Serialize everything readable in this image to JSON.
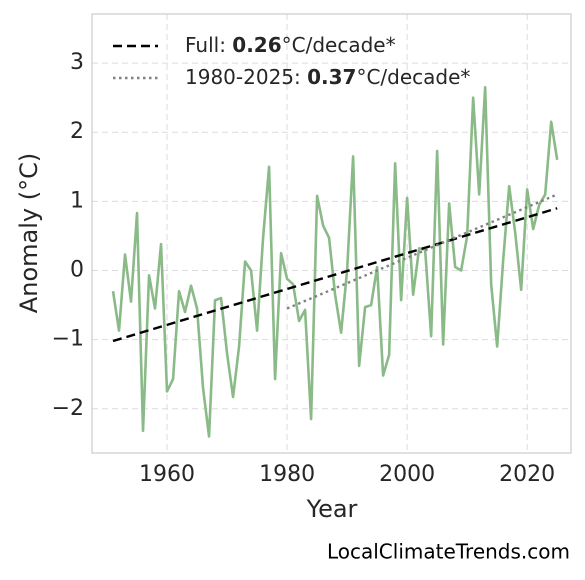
{
  "chart_data": {
    "type": "line",
    "xlabel": "Year",
    "ylabel": "Anomaly (°C)",
    "footer": "LocalClimateTrends.com",
    "xlim": [
      1947.5,
      2027.3
    ],
    "xticks": [
      1960,
      1980,
      2000,
      2020
    ],
    "ylim": [
      -2.64,
      3.71
    ],
    "yticks": [
      {
        "value": -2,
        "label": "−2"
      },
      {
        "value": -1,
        "label": "−1"
      },
      0,
      1,
      2,
      3
    ],
    "grid": true,
    "legend": "upper left",
    "series": [
      {
        "color": "#8aba87",
        "x": [
          1951,
          1952,
          1953,
          1954,
          1955,
          1956,
          1957,
          1958,
          1959,
          1960,
          1961,
          1962,
          1963,
          1964,
          1965,
          1966,
          1967,
          1968,
          1969,
          1970,
          1971,
          1972,
          1973,
          1974,
          1975,
          1976,
          1977,
          1978,
          1979,
          1980,
          1981,
          1982,
          1983,
          1984,
          1985,
          1986,
          1987,
          1988,
          1989,
          1990,
          1991,
          1992,
          1993,
          1994,
          1995,
          1996,
          1997,
          1998,
          1999,
          2000,
          2001,
          2002,
          2003,
          2004,
          2005,
          2006,
          2007,
          2008,
          2009,
          2010,
          2011,
          2012,
          2013,
          2014,
          2015,
          2016,
          2017,
          2018,
          2019,
          2020,
          2021,
          2022,
          2023,
          2024,
          2025
        ],
        "values": [
          -0.3,
          -0.87,
          0.23,
          -0.45,
          0.83,
          -2.32,
          -0.07,
          -0.55,
          0.38,
          -1.75,
          -1.57,
          -0.3,
          -0.6,
          -0.22,
          -0.55,
          -1.7,
          -2.4,
          -0.43,
          -0.4,
          -1.2,
          -1.83,
          -1.1,
          0.13,
          0.0,
          -0.87,
          0.47,
          1.5,
          -1.57,
          0.25,
          -0.12,
          -0.2,
          -0.73,
          -0.57,
          -2.15,
          1.08,
          0.65,
          0.47,
          -0.35,
          -0.9,
          0.0,
          1.65,
          -1.38,
          -0.53,
          -0.5,
          0.05,
          -1.52,
          -1.22,
          1.55,
          -0.43,
          1.05,
          -0.35,
          0.32,
          0.3,
          -0.95,
          1.73,
          -1.07,
          0.97,
          0.05,
          0.0,
          0.5,
          2.5,
          1.1,
          2.65,
          -0.2,
          -1.1,
          0.15,
          1.22,
          0.55,
          -0.28,
          1.17,
          0.6,
          0.95,
          1.1,
          2.15,
          1.6
        ]
      },
      {
        "name": [
          "Full: ",
          "0.26",
          "°C/decade*"
        ],
        "color": "#000000",
        "dash": "dashed",
        "x": [
          1951,
          2025
        ],
        "values": [
          -1.02,
          0.9
        ]
      },
      {
        "name": [
          "1980-2025: ",
          "0.37",
          "°C/decade*"
        ],
        "color": "#808080",
        "dash": "dotted",
        "x": [
          1980,
          2025
        ],
        "values": [
          -0.55,
          1.1
        ]
      }
    ]
  }
}
